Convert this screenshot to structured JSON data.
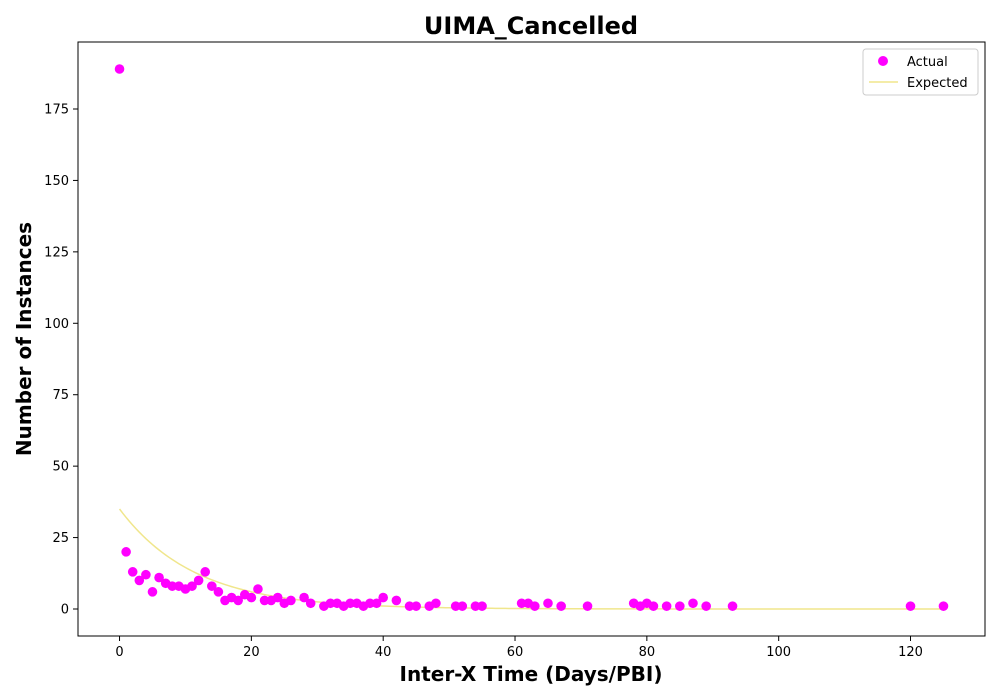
{
  "chart_data": {
    "type": "scatter",
    "title": "UIMA_Cancelled",
    "xlabel": "Inter-X Time (Days/PBI)",
    "ylabel": "Number of Instances",
    "xlim": [
      -6.3,
      131.3
    ],
    "ylim": [
      -9.45,
      198.45
    ],
    "xticks": [
      0,
      20,
      40,
      60,
      80,
      100,
      120
    ],
    "yticks": [
      0,
      25,
      50,
      75,
      100,
      125,
      150,
      175
    ],
    "grid": false,
    "legend_position": "top-right",
    "series": [
      {
        "name": "Actual",
        "kind": "scatter",
        "color": "#ff00ff",
        "points": [
          [
            0,
            189
          ],
          [
            1,
            20
          ],
          [
            2,
            13
          ],
          [
            3,
            10
          ],
          [
            4,
            12
          ],
          [
            5,
            6
          ],
          [
            6,
            11
          ],
          [
            7,
            9
          ],
          [
            8,
            8
          ],
          [
            9,
            8
          ],
          [
            10,
            7
          ],
          [
            11,
            8
          ],
          [
            12,
            10
          ],
          [
            13,
            13
          ],
          [
            14,
            8
          ],
          [
            15,
            6
          ],
          [
            16,
            3
          ],
          [
            17,
            4
          ],
          [
            18,
            3
          ],
          [
            19,
            5
          ],
          [
            20,
            4
          ],
          [
            21,
            7
          ],
          [
            22,
            3
          ],
          [
            23,
            3
          ],
          [
            24,
            4
          ],
          [
            25,
            2
          ],
          [
            26,
            3
          ],
          [
            28,
            4
          ],
          [
            29,
            2
          ],
          [
            31,
            1
          ],
          [
            32,
            2
          ],
          [
            33,
            2
          ],
          [
            34,
            1
          ],
          [
            35,
            2
          ],
          [
            36,
            2
          ],
          [
            37,
            1
          ],
          [
            38,
            2
          ],
          [
            39,
            2
          ],
          [
            40,
            4
          ],
          [
            42,
            3
          ],
          [
            44,
            1
          ],
          [
            45,
            1
          ],
          [
            47,
            1
          ],
          [
            48,
            2
          ],
          [
            51,
            1
          ],
          [
            52,
            1
          ],
          [
            54,
            1
          ],
          [
            55,
            1
          ],
          [
            61,
            2
          ],
          [
            62,
            2
          ],
          [
            63,
            1
          ],
          [
            65,
            2
          ],
          [
            67,
            1
          ],
          [
            71,
            1
          ],
          [
            78,
            2
          ],
          [
            79,
            1
          ],
          [
            80,
            2
          ],
          [
            81,
            1
          ],
          [
            83,
            1
          ],
          [
            85,
            1
          ],
          [
            87,
            2
          ],
          [
            89,
            1
          ],
          [
            93,
            1
          ],
          [
            120,
            1
          ],
          [
            125,
            1
          ]
        ]
      },
      {
        "name": "Expected",
        "kind": "line",
        "color": "#f0e68c",
        "model": "exponential",
        "a": 35,
        "b": 0.088,
        "x_range": [
          0,
          125
        ]
      }
    ]
  }
}
